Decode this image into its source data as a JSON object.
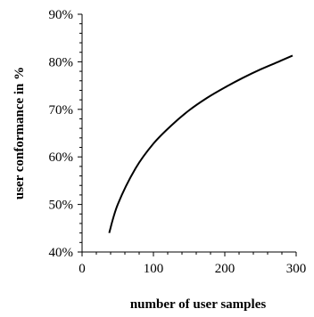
{
  "chart_data": {
    "type": "line",
    "title": "",
    "xlabel": "number of user samples",
    "ylabel": "user conformance in %",
    "xlim": [
      0,
      300
    ],
    "ylim": [
      40,
      90
    ],
    "x_ticks": [
      0,
      100,
      200,
      300
    ],
    "x_tick_labels": [
      "0",
      "100",
      "200",
      "300"
    ],
    "y_ticks": [
      40,
      50,
      60,
      70,
      80,
      90
    ],
    "y_tick_labels": [
      "40%",
      "50%",
      "60%",
      "70%",
      "80%",
      "90%"
    ],
    "grid": false,
    "legend": "none",
    "series": [
      {
        "x": [
          38,
          50,
          75,
          100,
          125,
          150,
          175,
          200,
          225,
          250,
          275,
          295
        ],
        "y": [
          44.0,
          50.0,
          57.6,
          62.8,
          66.6,
          69.8,
          72.4,
          74.6,
          76.6,
          78.4,
          80.0,
          81.3
        ]
      }
    ],
    "line_color": "#000000"
  }
}
